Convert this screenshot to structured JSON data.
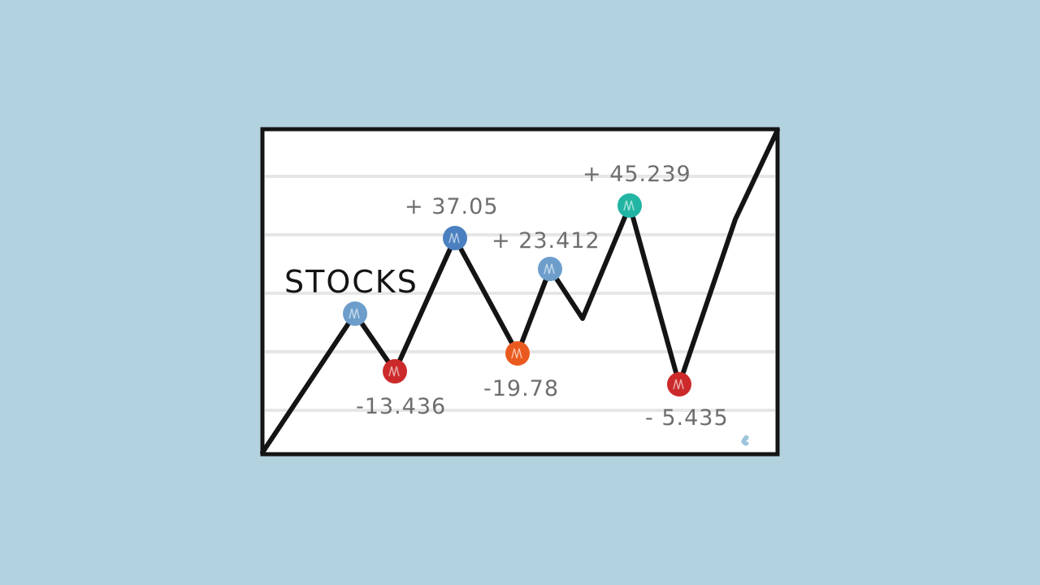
{
  "chart_data": {
    "type": "line",
    "title": "STOCKS",
    "xlabel": "",
    "ylabel": "",
    "grid": true,
    "legend": "none",
    "points": [
      {
        "label": "",
        "color": "#6d9ecb",
        "marker": true
      },
      {
        "label": "-13.436",
        "color": "#cc2a2a",
        "marker": true
      },
      {
        "label": "+ 37.05",
        "color": "#4a80bf",
        "marker": true
      },
      {
        "label": "-19.78",
        "color": "#ea5a1e",
        "marker": true
      },
      {
        "label": "+ 23.412",
        "color": "#6d9ecb",
        "marker": true
      },
      {
        "label": "",
        "color": "",
        "marker": false
      },
      {
        "label": "+ 45.239",
        "color": "#22b5a3",
        "marker": true
      },
      {
        "label": "- 5.435",
        "color": "#cc2a2a",
        "marker": true
      }
    ],
    "colors": {
      "background": "#b3d2df",
      "panel": "#ffffff",
      "line": "#141414",
      "grid": "#e6e6e6",
      "label": "#6e6e6e"
    }
  }
}
